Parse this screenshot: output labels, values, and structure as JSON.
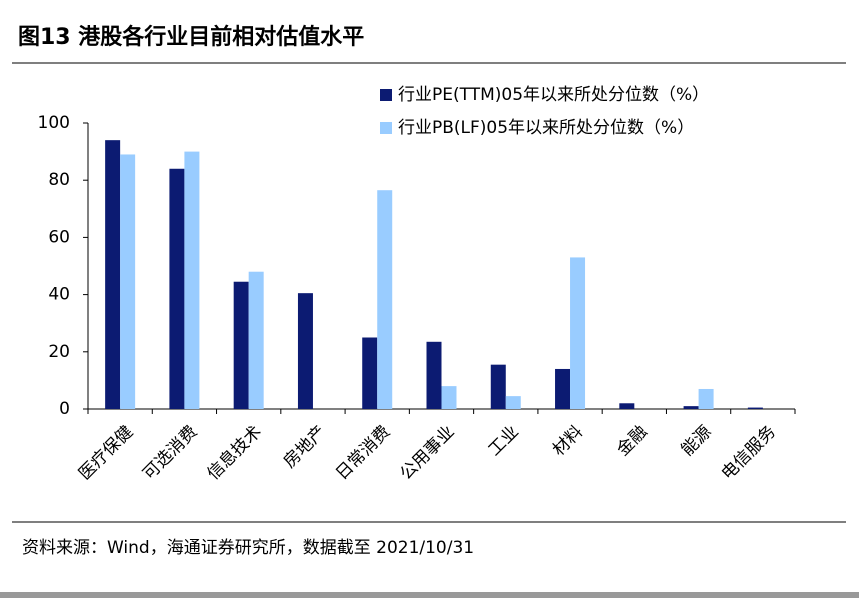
{
  "chart_data": {
    "type": "bar",
    "title": "图13 港股各行业目前相对估值水平",
    "categories": [
      "医疗保健",
      "可选消费",
      "信息技术",
      "房地产",
      "日常消费",
      "公用事业",
      "工业",
      "材料",
      "金融",
      "能源",
      "电信服务"
    ],
    "series": [
      {
        "name": "行业PE(TTM)05年以来所处分位数（%）",
        "color": "#0c1b72",
        "values": [
          94,
          84,
          44.5,
          40.5,
          25,
          23.5,
          15.5,
          14,
          2,
          1,
          0.5
        ]
      },
      {
        "name": "行业PB(LF)05年以来所处分位数（%）",
        "color": "#99ccff",
        "values": [
          89,
          90,
          48,
          0,
          76.5,
          8,
          4.5,
          53,
          0,
          7,
          0
        ]
      }
    ],
    "ylim": [
      0,
      100
    ],
    "yticks": [
      0,
      20,
      40,
      60,
      80,
      100
    ],
    "grid": false,
    "legend": "top-right",
    "source": "资料来源：Wind，海通证券研究所，数据截至 2021/10/31"
  }
}
